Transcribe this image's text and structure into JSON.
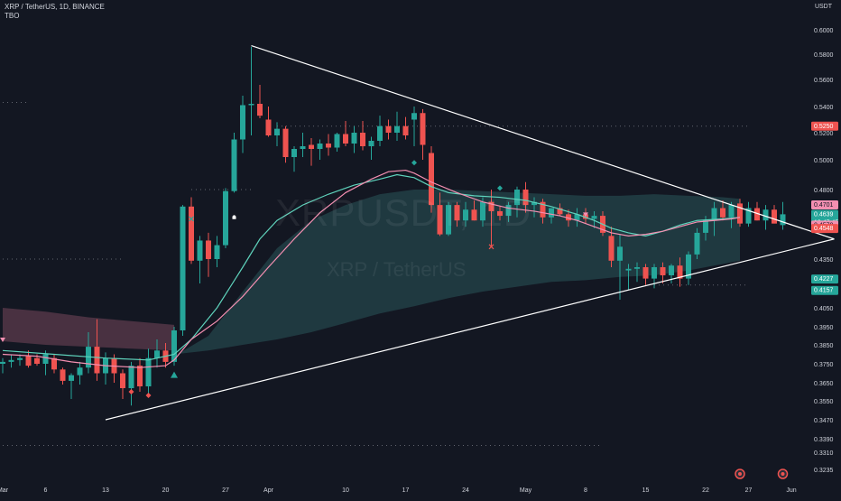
{
  "header": {
    "symbol_line": "XRP / TetherUS, 1D, BINANCE",
    "indicator": "TBO"
  },
  "currency": "USDT",
  "watermark": {
    "symbol": "XRPUSDT, 1D",
    "name": "XRP / TetherUS"
  },
  "colors": {
    "background": "#131722",
    "up": "#26a69a",
    "down": "#ef5350",
    "text": "#d1d4dc",
    "trendline": "#ffffff",
    "ma_fast": "#f48fb1",
    "ma_slow": "#5fd3bc",
    "cloud_green": "#4db6ac",
    "cloud_red": "#b0607a"
  },
  "chart_data": {
    "type": "candlestick",
    "symbol": "XRP / TetherUS",
    "interval": "1D",
    "exchange": "BINANCE",
    "ylim": [
      0.3175,
      0.6175
    ],
    "y_ticks": [
      "0.6000",
      "0.5800",
      "0.5600",
      "0.5400",
      "0.5200",
      "0.5000",
      "0.4800",
      "0.4350",
      "0.4050",
      "0.3950",
      "0.3850",
      "0.3750",
      "0.3650",
      "0.3550",
      "0.3470",
      "0.3390",
      "0.3310",
      "0.3235"
    ],
    "x_ticks": [
      {
        "day": 0,
        "label": "Mar"
      },
      {
        "day": 5,
        "label": "6"
      },
      {
        "day": 12,
        "label": "13"
      },
      {
        "day": 19,
        "label": "20"
      },
      {
        "day": 26,
        "label": "27"
      },
      {
        "day": 31,
        "label": "Apr"
      },
      {
        "day": 40,
        "label": "10"
      },
      {
        "day": 47,
        "label": "17"
      },
      {
        "day": 54,
        "label": "24"
      },
      {
        "day": 61,
        "label": "May"
      },
      {
        "day": 68,
        "label": "8"
      },
      {
        "day": 75,
        "label": "15"
      },
      {
        "day": 82,
        "label": "22"
      },
      {
        "day": 87,
        "label": "27"
      },
      {
        "day": 92,
        "label": "Jun"
      }
    ],
    "candles": [
      [
        0.375,
        0.378,
        0.37,
        0.376
      ],
      [
        0.376,
        0.38,
        0.373,
        0.377
      ],
      [
        0.377,
        0.38,
        0.374,
        0.378
      ],
      [
        0.379,
        0.382,
        0.373,
        0.374
      ],
      [
        0.378,
        0.38,
        0.374,
        0.375
      ],
      [
        0.375,
        0.382,
        0.369,
        0.38
      ],
      [
        0.378,
        0.38,
        0.37,
        0.372
      ],
      [
        0.372,
        0.373,
        0.364,
        0.366
      ],
      [
        0.366,
        0.37,
        0.356,
        0.369
      ],
      [
        0.369,
        0.376,
        0.364,
        0.373
      ],
      [
        0.373,
        0.392,
        0.37,
        0.384
      ],
      [
        0.384,
        0.399,
        0.366,
        0.37
      ],
      [
        0.37,
        0.381,
        0.364,
        0.378
      ],
      [
        0.378,
        0.38,
        0.365,
        0.37
      ],
      [
        0.37,
        0.372,
        0.356,
        0.362
      ],
      [
        0.362,
        0.376,
        0.353,
        0.374
      ],
      [
        0.374,
        0.378,
        0.36,
        0.363
      ],
      [
        0.363,
        0.383,
        0.359,
        0.378
      ],
      [
        0.378,
        0.388,
        0.373,
        0.382
      ],
      [
        0.382,
        0.386,
        0.373,
        0.376
      ],
      [
        0.376,
        0.395,
        0.374,
        0.393
      ],
      [
        0.393,
        0.47,
        0.39,
        0.469
      ],
      [
        0.469,
        0.475,
        0.432,
        0.434
      ],
      [
        0.434,
        0.45,
        0.42,
        0.447
      ],
      [
        0.447,
        0.452,
        0.424,
        0.435
      ],
      [
        0.435,
        0.45,
        0.43,
        0.444
      ],
      [
        0.444,
        0.481,
        0.442,
        0.479
      ],
      [
        0.479,
        0.52,
        0.478,
        0.515
      ],
      [
        0.515,
        0.548,
        0.505,
        0.541
      ],
      [
        0.541,
        0.586,
        0.518,
        0.542
      ],
      [
        0.542,
        0.556,
        0.531,
        0.533
      ],
      [
        0.53,
        0.54,
        0.517,
        0.518
      ],
      [
        0.518,
        0.528,
        0.51,
        0.523
      ],
      [
        0.523,
        0.525,
        0.498,
        0.502
      ],
      [
        0.502,
        0.51,
        0.492,
        0.508
      ],
      [
        0.508,
        0.52,
        0.502,
        0.51
      ],
      [
        0.511,
        0.516,
        0.496,
        0.508
      ],
      [
        0.508,
        0.515,
        0.5,
        0.512
      ],
      [
        0.512,
        0.519,
        0.503,
        0.509
      ],
      [
        0.509,
        0.52,
        0.506,
        0.519
      ],
      [
        0.519,
        0.529,
        0.51,
        0.512
      ],
      [
        0.512,
        0.525,
        0.505,
        0.52
      ],
      [
        0.52,
        0.529,
        0.507,
        0.51
      ],
      [
        0.51,
        0.517,
        0.5,
        0.514
      ],
      [
        0.514,
        0.533,
        0.51,
        0.525
      ],
      [
        0.525,
        0.53,
        0.515,
        0.52
      ],
      [
        0.52,
        0.536,
        0.514,
        0.525
      ],
      [
        0.525,
        0.532,
        0.515,
        0.518
      ],
      [
        0.53,
        0.54,
        0.51,
        0.535
      ],
      [
        0.535,
        0.538,
        0.5,
        0.511
      ],
      [
        0.505,
        0.51,
        0.465,
        0.47
      ],
      [
        0.47,
        0.478,
        0.45,
        0.451
      ],
      [
        0.451,
        0.472,
        0.45,
        0.47
      ],
      [
        0.47,
        0.472,
        0.456,
        0.46
      ],
      [
        0.46,
        0.472,
        0.456,
        0.467
      ],
      [
        0.467,
        0.473,
        0.46,
        0.46
      ],
      [
        0.46,
        0.475,
        0.456,
        0.472
      ],
      [
        0.472,
        0.48,
        0.443,
        0.466
      ],
      [
        0.466,
        0.469,
        0.46,
        0.463
      ],
      [
        0.463,
        0.472,
        0.459,
        0.47
      ],
      [
        0.47,
        0.482,
        0.462,
        0.48
      ],
      [
        0.48,
        0.485,
        0.465,
        0.47
      ],
      [
        0.47,
        0.475,
        0.462,
        0.472
      ],
      [
        0.472,
        0.474,
        0.458,
        0.462
      ],
      [
        0.462,
        0.468,
        0.458,
        0.468
      ],
      [
        0.468,
        0.471,
        0.463,
        0.464
      ],
      [
        0.464,
        0.467,
        0.456,
        0.46
      ],
      [
        0.46,
        0.468,
        0.456,
        0.464
      ],
      [
        0.464,
        0.468,
        0.458,
        0.461
      ],
      [
        0.461,
        0.466,
        0.455,
        0.463
      ],
      [
        0.463,
        0.466,
        0.45,
        0.452
      ],
      [
        0.45,
        0.456,
        0.43,
        0.434
      ],
      [
        0.434,
        0.451,
        0.41,
        0.443
      ],
      [
        0.428,
        0.432,
        0.416,
        0.429
      ],
      [
        0.429,
        0.433,
        0.421,
        0.43
      ],
      [
        0.43,
        0.432,
        0.419,
        0.423
      ],
      [
        0.423,
        0.432,
        0.417,
        0.43
      ],
      [
        0.43,
        0.433,
        0.42,
        0.425
      ],
      [
        0.425,
        0.432,
        0.42,
        0.431
      ],
      [
        0.431,
        0.436,
        0.418,
        0.423
      ],
      [
        0.423,
        0.44,
        0.419,
        0.438
      ],
      [
        0.438,
        0.455,
        0.435,
        0.452
      ],
      [
        0.452,
        0.463,
        0.447,
        0.46
      ],
      [
        0.46,
        0.472,
        0.45,
        0.468
      ],
      [
        0.468,
        0.473,
        0.46,
        0.462
      ],
      [
        0.462,
        0.472,
        0.455,
        0.47
      ],
      [
        0.471,
        0.474,
        0.456,
        0.458
      ],
      [
        0.458,
        0.472,
        0.456,
        0.468
      ],
      [
        0.468,
        0.472,
        0.46,
        0.46
      ],
      [
        0.46,
        0.47,
        0.454,
        0.467
      ],
      [
        0.467,
        0.47,
        0.458,
        0.458
      ],
      [
        0.457,
        0.472,
        0.454,
        0.464
      ]
    ],
    "ma_fast": [
      [
        0,
        0.38
      ],
      [
        4,
        0.379
      ],
      [
        8,
        0.376
      ],
      [
        12,
        0.374
      ],
      [
        16,
        0.373
      ],
      [
        19,
        0.374
      ],
      [
        20,
        0.377
      ],
      [
        22,
        0.388
      ],
      [
        25,
        0.398
      ],
      [
        28,
        0.412
      ],
      [
        31,
        0.43
      ],
      [
        34,
        0.448
      ],
      [
        37,
        0.465
      ],
      [
        40,
        0.478
      ],
      [
        43,
        0.487
      ],
      [
        45,
        0.492
      ],
      [
        47,
        0.493
      ],
      [
        48,
        0.491
      ],
      [
        50,
        0.485
      ],
      [
        53,
        0.478
      ],
      [
        56,
        0.472
      ],
      [
        59,
        0.468
      ],
      [
        62,
        0.466
      ],
      [
        65,
        0.463
      ],
      [
        67,
        0.46
      ],
      [
        69,
        0.456
      ],
      [
        71,
        0.452
      ],
      [
        73,
        0.45
      ],
      [
        75,
        0.451
      ],
      [
        77,
        0.453
      ],
      [
        79,
        0.456
      ],
      [
        81,
        0.459
      ],
      [
        83,
        0.46
      ],
      [
        85,
        0.461
      ],
      [
        86,
        0.462
      ]
    ],
    "ma_slow": [
      [
        0,
        0.382
      ],
      [
        6,
        0.38
      ],
      [
        12,
        0.378
      ],
      [
        17,
        0.377
      ],
      [
        20,
        0.38
      ],
      [
        22,
        0.388
      ],
      [
        25,
        0.405
      ],
      [
        28,
        0.43
      ],
      [
        30,
        0.448
      ],
      [
        32,
        0.46
      ],
      [
        35,
        0.47
      ],
      [
        38,
        0.477
      ],
      [
        41,
        0.483
      ],
      [
        44,
        0.487
      ],
      [
        46,
        0.49
      ],
      [
        48,
        0.488
      ],
      [
        50,
        0.482
      ],
      [
        52,
        0.478
      ],
      [
        55,
        0.476
      ],
      [
        58,
        0.475
      ],
      [
        61,
        0.473
      ],
      [
        64,
        0.469
      ],
      [
        67,
        0.464
      ],
      [
        69,
        0.46
      ],
      [
        71,
        0.455
      ],
      [
        73,
        0.452
      ],
      [
        75,
        0.45
      ],
      [
        77,
        0.453
      ],
      [
        79,
        0.457
      ],
      [
        81,
        0.46
      ],
      [
        84,
        0.461
      ],
      [
        86,
        0.462
      ]
    ],
    "cloud_green": {
      "upper": [
        [
          20,
          0.379
        ],
        [
          24,
          0.39
        ],
        [
          28,
          0.415
        ],
        [
          32,
          0.442
        ],
        [
          36,
          0.46
        ],
        [
          40,
          0.47
        ],
        [
          44,
          0.477
        ],
        [
          48,
          0.48
        ],
        [
          52,
          0.48
        ],
        [
          56,
          0.479
        ],
        [
          60,
          0.478
        ],
        [
          64,
          0.477
        ],
        [
          68,
          0.476
        ],
        [
          72,
          0.476
        ],
        [
          76,
          0.477
        ],
        [
          80,
          0.476
        ],
        [
          84,
          0.475
        ],
        [
          86,
          0.474
        ]
      ],
      "lower": [
        [
          20,
          0.38
        ],
        [
          24,
          0.382
        ],
        [
          28,
          0.385
        ],
        [
          32,
          0.388
        ],
        [
          36,
          0.392
        ],
        [
          40,
          0.397
        ],
        [
          44,
          0.402
        ],
        [
          48,
          0.406
        ],
        [
          52,
          0.411
        ],
        [
          56,
          0.415
        ],
        [
          60,
          0.418
        ],
        [
          64,
          0.421
        ],
        [
          68,
          0.422
        ],
        [
          72,
          0.424
        ],
        [
          76,
          0.425
        ],
        [
          80,
          0.428
        ],
        [
          84,
          0.432
        ],
        [
          86,
          0.434
        ]
      ]
    },
    "cloud_red": {
      "upper": [
        [
          0,
          0.405
        ],
        [
          5,
          0.403
        ],
        [
          10,
          0.4
        ],
        [
          15,
          0.398
        ],
        [
          20,
          0.396
        ]
      ],
      "lower": [
        [
          0,
          0.387
        ],
        [
          5,
          0.385
        ],
        [
          10,
          0.384
        ],
        [
          15,
          0.383
        ],
        [
          20,
          0.382
        ]
      ]
    },
    "trendlines": [
      {
        "from": [
          29,
          0.587
        ],
        "to": [
          97,
          0.448
        ]
      },
      {
        "from": [
          12,
          0.347
        ],
        "to": [
          97,
          0.448
        ]
      }
    ],
    "dotted_levels": [
      {
        "price": 0.525,
        "from_day": 32,
        "to_day": 87
      },
      {
        "price": 0.543,
        "from_day": 0,
        "to_day": 3
      },
      {
        "price": 0.435,
        "from_day": 0,
        "to_day": 14
      },
      {
        "price": 0.419,
        "from_day": 76,
        "to_day": 87
      },
      {
        "price": 0.48,
        "from_day": 22,
        "to_day": 29
      },
      {
        "price": 0.335,
        "from_day": 0,
        "to_day": 70
      }
    ],
    "markers": [
      {
        "day": 0,
        "price": 0.388,
        "shape": "tri-down",
        "color": "#f48fb1"
      },
      {
        "day": 15,
        "price": 0.36,
        "shape": "diamond",
        "color": "#ef5350"
      },
      {
        "day": 17,
        "price": 0.358,
        "shape": "diamond",
        "color": "#ef5350"
      },
      {
        "day": 20,
        "price": 0.369,
        "shape": "tri-up",
        "color": "#26a69a"
      },
      {
        "day": 22,
        "price": 0.461,
        "shape": "cross",
        "color": "#26a69a"
      },
      {
        "day": 27,
        "price": 0.462,
        "shape": "bell",
        "color": "#ffffff"
      },
      {
        "day": 48,
        "price": 0.498,
        "shape": "diamond",
        "color": "#26a69a"
      },
      {
        "day": 57,
        "price": 0.443,
        "shape": "cross",
        "color": "#ef5350"
      },
      {
        "day": 58,
        "price": 0.481,
        "shape": "diamond",
        "color": "#26a69a"
      },
      {
        "day": 68,
        "price": 0.464,
        "shape": "tri-down",
        "color": "#f48fb1"
      }
    ],
    "price_labels": [
      {
        "price": 0.525,
        "text": "0.5250",
        "bg": "#ef5350",
        "fg": "#ffffff",
        "size": 1
      },
      {
        "price": 0.4701,
        "text": "0.4701",
        "bg": "#f48fb1",
        "fg": "#131722",
        "size": 1
      },
      {
        "price": 0.4639,
        "text": "0.4639\n19:47:45",
        "bg": "#26a69a",
        "fg": "#ffffff",
        "size": 2
      },
      {
        "price": 0.457,
        "text": "0.4570",
        "bg": "#f48fb1",
        "fg": "#131722",
        "size": 1
      },
      {
        "price": 0.4548,
        "text": "0.4548",
        "bg": "#ef5350",
        "fg": "#ffffff",
        "size": 1
      },
      {
        "price": 0.4227,
        "text": "0.4227",
        "bg": "#26a69a",
        "fg": "#ffffff",
        "size": 1
      },
      {
        "price": 0.4157,
        "text": "0.4157",
        "bg": "#26a69a",
        "fg": "#ffffff",
        "size": 1
      }
    ],
    "event_icons": [
      {
        "day": 86
      },
      {
        "day": 91
      }
    ]
  }
}
